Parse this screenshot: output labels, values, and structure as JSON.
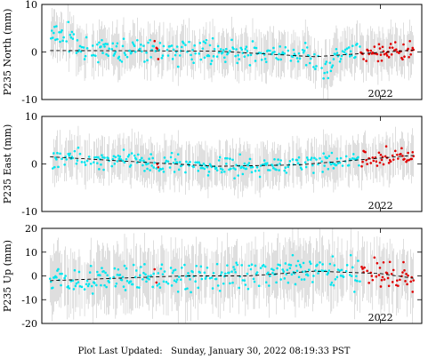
{
  "colors": {
    "frame": "#000000",
    "errorbar": "#c8c8c8",
    "point": "#00e5ee",
    "recent": "#e00000",
    "trend": "#000000"
  },
  "chart_data": [
    {
      "type": "scatter",
      "ylabel": "P235 North (mm)",
      "ylim": [
        -10,
        10
      ],
      "yticks": [
        -10,
        0,
        10
      ],
      "xticks": [
        {
          "x": 2022.0,
          "label": "2022"
        }
      ],
      "xlim": [
        2019.95,
        2022.25
      ],
      "noise": 3.5,
      "err": 4,
      "scatter": 1.6,
      "anomalies": [
        {
          "start": 2021.6,
          "end": 2021.72,
          "shift": -3
        }
      ],
      "early_offset": 3,
      "series": [
        {
          "kind": "trend",
          "x": [
            2020.0,
            2021.0,
            2021.6,
            2022.2
          ],
          "y": [
            0.3,
            0.2,
            -1.0,
            0.4
          ]
        }
      ]
    },
    {
      "type": "scatter",
      "ylabel": "P235 East (mm)",
      "ylim": [
        -10,
        10
      ],
      "yticks": [
        -10,
        0,
        10
      ],
      "xticks": [
        {
          "x": 2022.0,
          "label": "2022"
        }
      ],
      "xlim": [
        2019.95,
        2022.25
      ],
      "noise": 3.5,
      "err": 4,
      "scatter": 1.4,
      "anomalies": [],
      "early_offset": 0,
      "series": [
        {
          "kind": "trend",
          "x": [
            2020.0,
            2020.5,
            2021.0,
            2021.5,
            2022.2
          ],
          "y": [
            1.5,
            0.5,
            -0.5,
            -0.2,
            1.8
          ]
        }
      ]
    },
    {
      "type": "scatter",
      "ylabel": "P235 Up (mm)",
      "ylim": [
        -20,
        20
      ],
      "yticks": [
        -20,
        -10,
        0,
        10,
        20
      ],
      "xticks": [
        {
          "x": 2022.0,
          "label": "2022"
        }
      ],
      "xlim": [
        2019.95,
        2022.25
      ],
      "noise": 9,
      "err": 11,
      "scatter": 4.5,
      "anomalies": [],
      "early_offset": 0,
      "series": [
        {
          "kind": "trend",
          "x": [
            2020.0,
            2020.4,
            2020.8,
            2021.2,
            2021.6,
            2022.0,
            2022.2
          ],
          "y": [
            -2,
            -1,
            0,
            0,
            2,
            1,
            -1
          ]
        }
      ]
    }
  ],
  "footer": {
    "prefix": "Plot Last Updated:",
    "timestamp": "Sunday, January 30, 2022 08:19:33 PST"
  }
}
